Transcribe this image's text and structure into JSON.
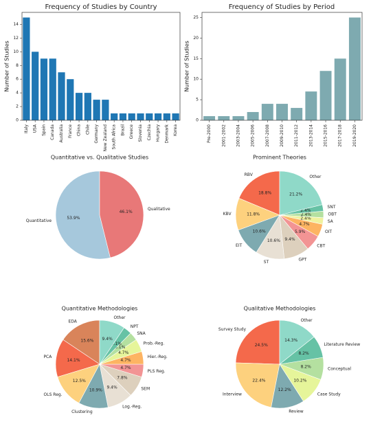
{
  "chart_data": [
    {
      "type": "bar",
      "title": "Frequency of Studies by Country",
      "y_label": "Number of Studies",
      "categories": [
        "Italy",
        "USA",
        "Spain",
        "Canada",
        "Australia",
        "France",
        "China",
        "Chile",
        "Germany",
        "New Zealand",
        "South Africa",
        "Brazil",
        "Greece",
        "Slovenia",
        "Czechia",
        "Hungary",
        "Denmark",
        "Korea"
      ],
      "values": [
        15,
        10,
        9,
        9,
        7,
        6,
        4,
        4,
        3,
        3,
        1,
        1,
        1,
        1,
        1,
        1,
        1,
        1
      ],
      "color": "#1f77b4",
      "ylim": [
        0,
        15.75
      ],
      "yticks": [
        0,
        2,
        4,
        6,
        8,
        10,
        12,
        14
      ]
    },
    {
      "type": "bar",
      "title": "Frequency of Studies by Period",
      "y_label": "Number of Studies",
      "categories": [
        "Pre-2000",
        "2001-2002",
        "2003-2004",
        "2005-2006",
        "2007-2008",
        "2009-2010",
        "2011-2012",
        "2013-2014",
        "2015-2016",
        "2017-2018",
        "2019-2020"
      ],
      "values": [
        1,
        1,
        1,
        2,
        4,
        4,
        3,
        7,
        12,
        15,
        25
      ],
      "color": "#7eaab0",
      "ylim": [
        0,
        26.25
      ],
      "yticks": [
        0,
        5,
        10,
        15,
        20,
        25
      ]
    },
    {
      "type": "pie",
      "title": "Quantitative vs. Qualitative Studies",
      "categories": [
        "Quantitative",
        "Qualitative"
      ],
      "values": [
        53.9,
        46.1
      ],
      "value_labels": [
        "53.9%",
        "46.1%"
      ],
      "colors": [
        "#a6c8dc",
        "#e87878"
      ]
    },
    {
      "type": "pie",
      "title": "Prominent Theories",
      "categories": [
        "RBV",
        "KBV",
        "EIT",
        "ST",
        "GPT",
        "CBT",
        "OIT",
        "SA",
        "OBT",
        "SNT",
        "Other"
      ],
      "values": [
        18.8,
        11.8,
        10.6,
        10.6,
        9.4,
        5.9,
        4.7,
        2.4,
        2.4,
        2.4,
        21.2
      ],
      "value_labels": [
        "18.8%",
        "11.8%",
        "10.6%",
        "10.6%",
        "9.4%",
        "5.9%",
        "4.7%",
        "2.4%",
        "2.4%",
        "2.4%",
        "21.2%"
      ],
      "colors": [
        "#f4694b",
        "#fdd17e",
        "#7eaab0",
        "#e8e0d4",
        "#ddd0bd",
        "#f29494",
        "#fdb462",
        "#f0f29e",
        "#b4e0a0",
        "#66c2a5",
        "#8fd9c8"
      ]
    },
    {
      "type": "pie",
      "title": "Quantitative Methodologies",
      "categories": [
        "EDA",
        "PCA",
        "OLS Reg.",
        "Clustering",
        "Log.-Reg.",
        "SEM",
        "PLS Reg.",
        "Hier.-Reg.",
        "Prob.-Reg.",
        "SNA",
        "NPT",
        "Other"
      ],
      "values": [
        15.6,
        14.1,
        12.5,
        10.9,
        9.4,
        7.8,
        4.7,
        4.7,
        4.7,
        3.1,
        3.1,
        9.4
      ],
      "value_labels": [
        "15.6%",
        "14.1%",
        "12.5%",
        "10.9%",
        "9.4%",
        "7.8%",
        "4.7%",
        "4.7%",
        "4.7%",
        "3.1%",
        "3.1%",
        "9.4%"
      ],
      "colors": [
        "#d9845a",
        "#f4694b",
        "#fdd17e",
        "#7eaab0",
        "#e8e0d4",
        "#ddd0bd",
        "#f29494",
        "#fdb462",
        "#e6f59a",
        "#b4e0a0",
        "#66c2a5",
        "#8fd9c8"
      ]
    },
    {
      "type": "pie",
      "title": "Qualitative Methodologies",
      "categories": [
        "Survey Study",
        "Interview",
        "Review",
        "Case Study",
        "Conceptual",
        "Literature Review",
        "Other"
      ],
      "values": [
        24.5,
        22.4,
        12.2,
        10.2,
        8.2,
        8.2,
        14.3
      ],
      "value_labels": [
        "24.5%",
        "22.4%",
        "12.2%",
        "10.2%",
        "8.2%",
        "8.2%",
        "14.3%"
      ],
      "colors": [
        "#f4694b",
        "#fdd17e",
        "#7eaab0",
        "#e6f59a",
        "#b4e0a0",
        "#66c2a5",
        "#8fd9c8"
      ]
    }
  ]
}
